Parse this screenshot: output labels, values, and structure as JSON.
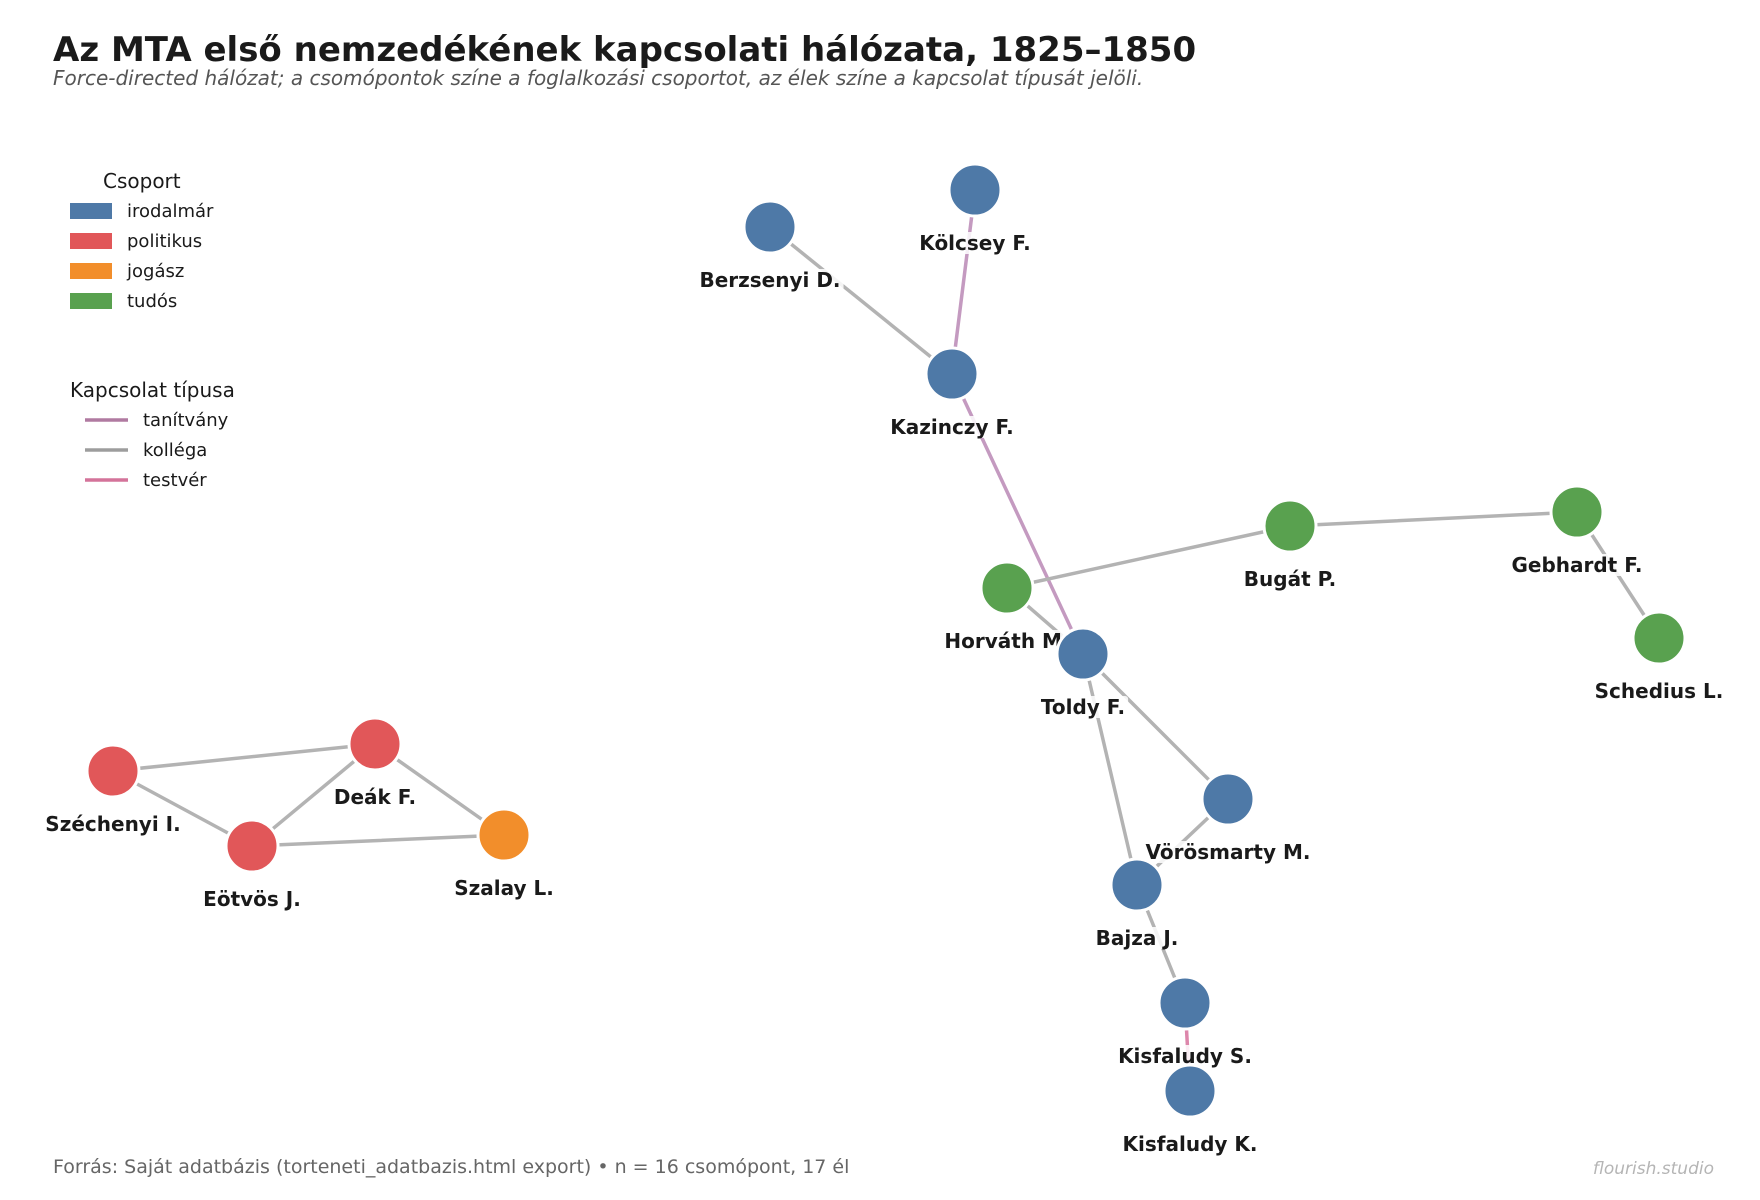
{
  "title": "Az MTA első nemzedékének kapcsolati hálózata, 1825–1850",
  "subtitle": "Force-directed hálózat; a csomópontok színe a foglalkozási csoportot, az élek színe a kapcsolat típusát jelöli.",
  "legend": {
    "groups_title": "Csoport",
    "groups": [
      {
        "id": "irodalmar",
        "label": "irodalmár",
        "color": "#4e79a7"
      },
      {
        "id": "politikus",
        "label": "politikus",
        "color": "#e15759"
      },
      {
        "id": "jogasz",
        "label": "jogász",
        "color": "#f28e2b"
      },
      {
        "id": "tudos",
        "label": "tudós",
        "color": "#59a14f"
      }
    ],
    "edges_title": "Kapcsolat típusa",
    "edge_types": [
      {
        "id": "tanitvany",
        "label": "tanítvány",
        "color": "#b07aa1"
      },
      {
        "id": "kollega",
        "label": "kolléga",
        "color": "#9d9d9d"
      },
      {
        "id": "testver",
        "label": "testvér",
        "color": "#d4739a"
      }
    ]
  },
  "nodes": [
    {
      "id": "kolcsey",
      "label": "Kölcsey F.",
      "group": "irodalmar"
    },
    {
      "id": "berzsenyi",
      "label": "Berzsenyi D.",
      "group": "irodalmar"
    },
    {
      "id": "kazinczy",
      "label": "Kazinczy F.",
      "group": "irodalmar"
    },
    {
      "id": "bugat",
      "label": "Bugát P.",
      "group": "tudos"
    },
    {
      "id": "gebhardt",
      "label": "Gebhardt F.",
      "group": "tudos"
    },
    {
      "id": "horvath",
      "label": "Horváth M.",
      "group": "tudos"
    },
    {
      "id": "toldy",
      "label": "Toldy F.",
      "group": "irodalmar"
    },
    {
      "id": "schedius",
      "label": "Schedius L.",
      "group": "tudos"
    },
    {
      "id": "vorosmarty",
      "label": "Vörösmarty M.",
      "group": "irodalmar"
    },
    {
      "id": "bajza",
      "label": "Bajza J.",
      "group": "irodalmar"
    },
    {
      "id": "kisfaludy_s",
      "label": "Kisfaludy S.",
      "group": "irodalmar"
    },
    {
      "id": "kisfaludy_k",
      "label": "Kisfaludy K.",
      "group": "irodalmar"
    },
    {
      "id": "szechenyi",
      "label": "Széchenyi I.",
      "group": "politikus"
    },
    {
      "id": "deak",
      "label": "Deák F.",
      "group": "politikus"
    },
    {
      "id": "eotvos",
      "label": "Eötvös J.",
      "group": "politikus"
    },
    {
      "id": "szalay",
      "label": "Szalay L.",
      "group": "jogasz"
    }
  ],
  "edges": [
    {
      "source": "kolcsey",
      "target": "kazinczy",
      "type": "tanitvany"
    },
    {
      "source": "berzsenyi",
      "target": "kazinczy",
      "type": "kollega"
    },
    {
      "source": "kazinczy",
      "target": "toldy",
      "type": "tanitvany"
    },
    {
      "source": "horvath",
      "target": "bugat",
      "type": "kollega"
    },
    {
      "source": "bugat",
      "target": "gebhardt",
      "type": "kollega"
    },
    {
      "source": "gebhardt",
      "target": "schedius",
      "type": "kollega"
    },
    {
      "source": "horvath",
      "target": "toldy",
      "type": "kollega"
    },
    {
      "source": "toldy",
      "target": "vorosmarty",
      "type": "kollega"
    },
    {
      "source": "toldy",
      "target": "bajza",
      "type": "kollega"
    },
    {
      "source": "vorosmarty",
      "target": "bajza",
      "type": "kollega"
    },
    {
      "source": "bajza",
      "target": "kisfaludy_s",
      "type": "kollega"
    },
    {
      "source": "kisfaludy_s",
      "target": "kisfaludy_k",
      "type": "testver"
    },
    {
      "source": "szechenyi",
      "target": "deak",
      "type": "kollega"
    },
    {
      "source": "szechenyi",
      "target": "eotvos",
      "type": "kollega"
    },
    {
      "source": "deak",
      "target": "eotvos",
      "type": "kollega"
    },
    {
      "source": "deak",
      "target": "szalay",
      "type": "kollega"
    },
    {
      "source": "eotvos",
      "target": "szalay",
      "type": "kollega"
    }
  ],
  "source_note": "Forrás: Saját adatbázis (torteneti_adatbazis.html export)  •  n = 16 csomópont, 17 él",
  "brand": "flourish.studio"
}
